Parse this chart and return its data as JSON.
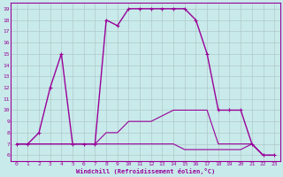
{
  "xlabel": "Windchill (Refroidissement éolien,°C)",
  "xlim": [
    -0.5,
    23.5
  ],
  "ylim": [
    5.5,
    19.5
  ],
  "yticks": [
    6,
    7,
    8,
    9,
    10,
    11,
    12,
    13,
    14,
    15,
    16,
    17,
    18,
    19
  ],
  "xticks": [
    0,
    1,
    2,
    3,
    4,
    5,
    6,
    7,
    8,
    9,
    10,
    11,
    12,
    13,
    14,
    15,
    16,
    17,
    18,
    19,
    20,
    21,
    22,
    23
  ],
  "bg_color": "#c8eaea",
  "line_color": "#990099",
  "grid_color": "#b0c8c8",
  "series": [
    {
      "x": [
        0,
        1,
        2,
        3,
        4,
        5,
        6,
        7,
        8,
        9,
        10,
        11,
        12,
        13,
        14,
        15,
        16,
        17,
        18,
        19,
        20,
        21,
        22,
        23
      ],
      "y": [
        7,
        7,
        8,
        12,
        15,
        7,
        7,
        7,
        18,
        17.5,
        19,
        19,
        19,
        19,
        19,
        19,
        18,
        15,
        10,
        10,
        10,
        7,
        6,
        6
      ],
      "marker": true,
      "lw": 1.0
    },
    {
      "x": [
        0,
        1,
        2,
        3,
        4,
        5,
        6,
        7,
        8,
        9,
        10,
        11,
        12,
        13,
        14,
        15,
        16,
        17,
        18,
        19,
        20,
        21,
        22,
        23
      ],
      "y": [
        7,
        7,
        7,
        7,
        7,
        7,
        7,
        7,
        8,
        8,
        9,
        9,
        9,
        9.5,
        10,
        10,
        10,
        10,
        7,
        7,
        7,
        7,
        6,
        6
      ],
      "marker": false,
      "lw": 0.8
    },
    {
      "x": [
        0,
        1,
        2,
        3,
        4,
        5,
        6,
        7,
        8,
        9,
        10,
        11,
        12,
        13,
        14,
        15,
        16,
        17,
        18,
        19,
        20,
        21,
        22,
        23
      ],
      "y": [
        7,
        7,
        7,
        7,
        7,
        7,
        7,
        7,
        7,
        7,
        7,
        7,
        7,
        7,
        7,
        6.5,
        6.5,
        6.5,
        6.5,
        6.5,
        6.5,
        7,
        6,
        6
      ],
      "marker": false,
      "lw": 0.8
    }
  ]
}
